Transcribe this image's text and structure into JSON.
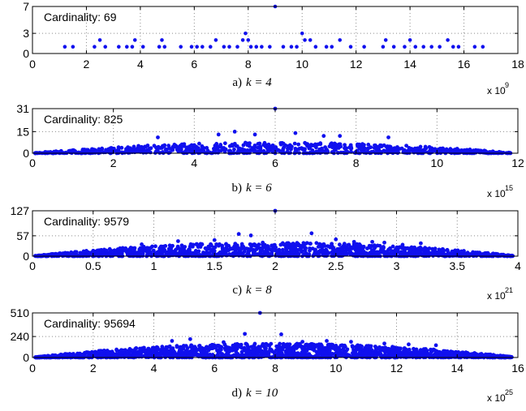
{
  "chart_data": [
    {
      "type": "scatter",
      "caption_prefix": "a)",
      "caption_k": "k = 4",
      "annotation": "Cardinality: 69",
      "xlim": [
        0,
        18
      ],
      "x_ticks": [
        "0",
        "2",
        "4",
        "6",
        "8",
        "10",
        "12",
        "14",
        "16",
        "18"
      ],
      "x_multiplier": "x 10",
      "x_exponent": "9",
      "ylim": [
        0,
        7
      ],
      "y_ticks": [
        "0",
        "3",
        "7"
      ],
      "grid": true,
      "points_x": [
        1.2,
        1.5,
        2.3,
        2.5,
        2.7,
        3.2,
        3.5,
        3.7,
        3.8,
        4.1,
        4.7,
        4.8,
        4.9,
        5.5,
        5.9,
        6.1,
        6.3,
        6.6,
        6.8,
        7.1,
        7.3,
        7.6,
        7.8,
        7.9,
        8.0,
        8.1,
        8.3,
        8.5,
        8.8,
        9.0,
        9.3,
        9.6,
        9.8,
        10.0,
        10.1,
        10.3,
        10.5,
        10.9,
        11.1,
        11.4,
        11.8,
        12.3,
        13.0,
        13.1,
        13.4,
        13.8,
        14.0,
        14.2,
        14.5,
        14.8,
        15.1,
        15.4,
        15.6,
        15.8,
        16.4,
        16.7
      ],
      "points_y": [
        1,
        1,
        1,
        2,
        1,
        1,
        1,
        1,
        2,
        1,
        1,
        2,
        1,
        1,
        1,
        1,
        1,
        1,
        2,
        1,
        1,
        1,
        2,
        3,
        2,
        1,
        1,
        1,
        1,
        7,
        1,
        1,
        1,
        3,
        2,
        2,
        1,
        1,
        1,
        2,
        1,
        1,
        1,
        2,
        1,
        1,
        2,
        1,
        1,
        1,
        1,
        2,
        1,
        1,
        1,
        1
      ]
    },
    {
      "type": "scatter",
      "caption_prefix": "b)",
      "caption_k": "k = 6",
      "annotation": "Cardinality: 825",
      "xlim": [
        0,
        12
      ],
      "x_ticks": [
        "0",
        "2",
        "4",
        "6",
        "8",
        "10",
        "12"
      ],
      "x_multiplier": "x 10",
      "x_exponent": "15",
      "ylim": [
        0,
        31
      ],
      "y_ticks": [
        "0",
        "15",
        "31"
      ],
      "grid": true,
      "envelope_peak": 7.5,
      "peak_point": [
        6.0,
        31
      ],
      "outliers_x": [
        5.0,
        5.5,
        6.5,
        7.2,
        3.1,
        8.8,
        4.6,
        7.6
      ],
      "outliers_y": [
        15,
        13,
        14,
        12,
        11,
        11,
        13,
        12
      ],
      "cluster_count": 825,
      "seed": 6
    },
    {
      "type": "scatter",
      "caption_prefix": "c)",
      "caption_k": "k = 8",
      "annotation": "Cardinality: 9579",
      "xlim": [
        0,
        4
      ],
      "x_ticks": [
        "0",
        "0.5",
        "1",
        "1.5",
        "2",
        "2.5",
        "3",
        "3.5",
        "4"
      ],
      "x_multiplier": "x 10",
      "x_exponent": "21",
      "ylim": [
        0,
        127
      ],
      "y_ticks": [
        "0",
        "57",
        "127"
      ],
      "grid": true,
      "envelope_peak": 38,
      "peak_point": [
        2.0,
        127
      ],
      "outliers_x": [
        1.7,
        1.8,
        2.3,
        1.5,
        2.5,
        1.2,
        2.8,
        2.9,
        3.2,
        1.35,
        2.65,
        0.9,
        3.05
      ],
      "outliers_y": [
        62,
        58,
        64,
        45,
        47,
        42,
        40,
        38,
        36,
        33,
        40,
        33,
        32
      ],
      "cluster_count": 1400,
      "seed": 8
    },
    {
      "type": "scatter",
      "caption_prefix": "d)",
      "caption_k": "k = 10",
      "annotation": "Cardinality: 95694",
      "xlim": [
        0,
        16
      ],
      "x_ticks": [
        "0",
        "2",
        "4",
        "6",
        "8",
        "10",
        "12",
        "14",
        "16"
      ],
      "x_multiplier": "x 10",
      "x_exponent": "25",
      "ylim": [
        0,
        510
      ],
      "y_ticks": [
        "0",
        "240",
        "510"
      ],
      "grid": true,
      "envelope_peak": 160,
      "peak_point": [
        7.5,
        510
      ],
      "outliers_x": [
        7.0,
        8.2,
        5.2,
        9.7,
        4.6,
        10.5,
        6.3,
        8.9,
        11.6,
        12.4,
        13.3
      ],
      "outliers_y": [
        270,
        265,
        210,
        190,
        190,
        180,
        175,
        180,
        160,
        150,
        140
      ],
      "cluster_count": 1800,
      "seed": 10
    }
  ],
  "colors": {
    "points": "#1010ee",
    "axis": "#000000",
    "grid": "#8c8c8c"
  }
}
